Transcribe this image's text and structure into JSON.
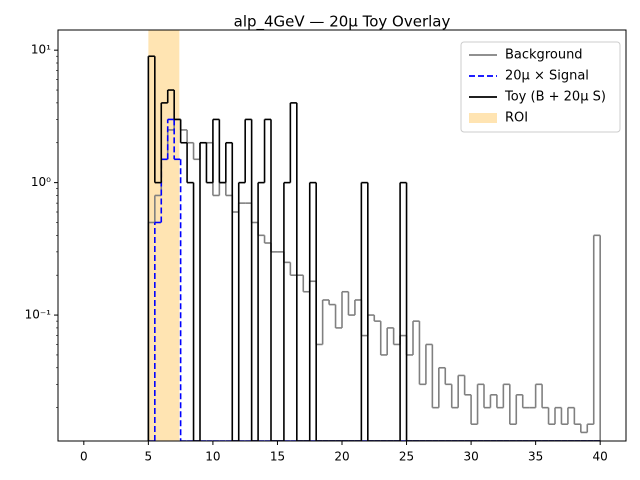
{
  "chart_data": {
    "type": "step-histogram",
    "title": "alp_4GeV — 20μ Toy Overlay",
    "log_y": true,
    "legend": "upper right",
    "xlim": [
      -2,
      42
    ],
    "ylim": [
      0.0112,
      14.2
    ],
    "xticks": [
      0,
      5,
      10,
      15,
      20,
      25,
      30,
      35,
      40
    ],
    "yticks": [
      {
        "value": 0.1,
        "label": "10⁻¹"
      },
      {
        "value": 1,
        "label": "10⁰"
      },
      {
        "value": 10,
        "label": "10¹"
      }
    ],
    "bins": [
      5,
      5.5,
      6,
      6.5,
      7,
      7.5,
      8,
      8.5,
      9,
      9.5,
      10,
      10.5,
      11,
      11.5,
      12,
      12.5,
      13,
      13.5,
      14,
      14.5,
      15,
      15.5,
      16,
      16.5,
      17,
      17.5,
      18,
      18.5,
      19,
      19.5,
      20,
      20.5,
      21,
      21.5,
      22,
      22.5,
      23,
      23.5,
      24,
      24.5,
      25,
      25.5,
      26,
      26.5,
      27,
      27.5,
      28,
      28.5,
      29,
      29.5,
      30,
      30.5,
      31,
      31.5,
      32,
      32.5,
      33,
      33.5,
      34,
      34.5,
      35,
      35.5,
      36,
      36.5,
      37,
      37.5,
      38,
      38.5,
      39,
      39.5,
      40
    ],
    "roi": {
      "name": "ROI",
      "range": [
        5,
        7.4
      ],
      "color": "orange",
      "alpha": 0.3
    },
    "series": [
      {
        "name": "Background",
        "color": "gray",
        "linestyle": "solid",
        "values": [
          0.5,
          0.8,
          1.5,
          2.5,
          3,
          2.5,
          2,
          1.5,
          2,
          2,
          0.8,
          1,
          0.8,
          0.6,
          0.7,
          0.7,
          0.5,
          0.4,
          0.35,
          0.3,
          0.3,
          0.25,
          0.2,
          0.2,
          0.15,
          0.18,
          0.06,
          0.13,
          0.12,
          0.08,
          0.15,
          0.1,
          0.13,
          0.07,
          0.1,
          0.09,
          0.05,
          0.08,
          0.06,
          0.07,
          0.05,
          0.09,
          0.03,
          0.06,
          0.02,
          0.04,
          0.03,
          0.02,
          0.035,
          0.025,
          0.015,
          0.03,
          0.02,
          0.025,
          0.02,
          0.03,
          0.015,
          0.025,
          0.02,
          0.02,
          0.03,
          0.02,
          0.015,
          0.02,
          0.015,
          0.02,
          0.015,
          0.013,
          0.015,
          0.4
        ]
      },
      {
        "name": "20μ × Signal",
        "color": "blue",
        "linestyle": "dashed",
        "values": [
          0,
          0.5,
          1.5,
          3,
          1.5,
          0,
          0,
          0,
          0,
          0,
          0,
          0,
          0,
          0,
          0,
          0,
          0,
          0,
          0,
          0,
          0,
          0,
          0,
          0,
          0,
          0,
          0,
          0,
          0,
          0,
          0,
          0,
          0,
          0,
          0,
          0,
          0,
          0,
          0,
          0,
          0,
          0,
          0,
          0,
          0,
          0,
          0,
          0,
          0,
          0,
          0,
          0,
          0,
          0,
          0,
          0,
          0,
          0,
          0,
          0,
          0,
          0,
          0,
          0,
          0,
          0,
          0,
          0,
          0,
          0
        ]
      },
      {
        "name": "Toy (B + 20μ S)",
        "color": "black",
        "linestyle": "solid",
        "values": [
          9,
          1,
          4,
          5,
          3,
          2,
          1,
          0,
          2,
          1,
          3,
          1,
          2,
          0,
          1,
          3,
          0,
          1,
          3,
          0,
          0,
          1,
          4,
          0,
          0,
          1,
          0,
          0,
          0,
          0,
          0,
          0,
          0,
          1,
          0,
          0,
          0,
          0,
          0,
          1,
          0,
          0,
          0,
          0,
          0,
          0,
          0,
          0,
          0,
          0,
          0,
          0,
          0,
          0,
          0,
          0,
          0,
          0,
          0,
          0,
          0,
          0,
          0,
          0,
          0,
          0,
          0,
          0,
          0,
          0
        ]
      }
    ]
  }
}
